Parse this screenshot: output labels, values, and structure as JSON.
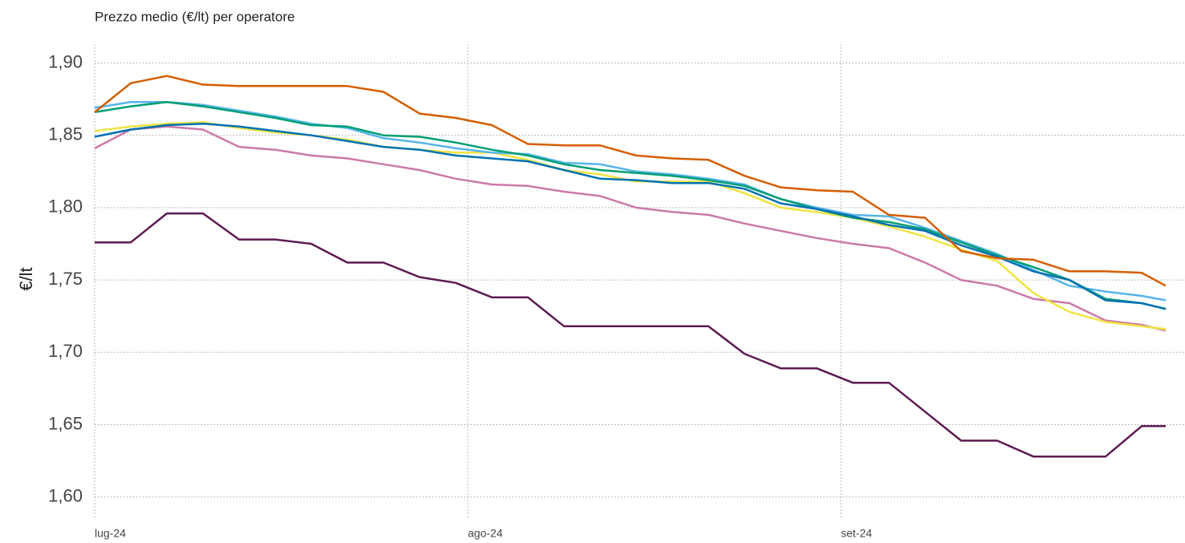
{
  "chart_data": {
    "type": "line",
    "title": "Prezzo medio (€/lt) per operatore",
    "ylabel": "€/lt",
    "x": [
      0,
      3,
      6,
      9,
      12,
      15,
      18,
      21,
      24,
      27,
      30,
      33,
      36,
      39,
      42,
      45,
      48,
      51,
      54,
      57,
      60,
      63,
      66,
      69,
      72,
      75,
      78,
      81,
      84,
      87,
      89
    ],
    "xlim": [
      0,
      90.6
    ],
    "xticks": [
      {
        "value": 0,
        "label": "lug-24"
      },
      {
        "value": 31,
        "label": "ago-24"
      },
      {
        "value": 62,
        "label": "set-24"
      }
    ],
    "ylim": [
      1.586,
      1.913
    ],
    "yticks": [
      {
        "value": 1.6,
        "label": "1,60"
      },
      {
        "value": 1.65,
        "label": "1,65"
      },
      {
        "value": 1.7,
        "label": "1,70"
      },
      {
        "value": 1.75,
        "label": "1,75"
      },
      {
        "value": 1.8,
        "label": "1,80"
      },
      {
        "value": 1.85,
        "label": "1,85"
      },
      {
        "value": 1.9,
        "label": "1,90"
      }
    ],
    "grid": true,
    "series": [
      {
        "color": "#cc79a7",
        "values": [
          1.841,
          1.854,
          1.856,
          1.854,
          1.842,
          1.84,
          1.836,
          1.834,
          1.83,
          1.826,
          1.82,
          1.816,
          1.815,
          1.811,
          1.808,
          1.8,
          1.797,
          1.795,
          1.789,
          1.784,
          1.779,
          1.775,
          1.772,
          1.762,
          1.75,
          1.746,
          1.737,
          1.734,
          1.722,
          1.719,
          1.715
        ]
      },
      {
        "color": "#f0e442",
        "values": [
          1.853,
          1.856,
          1.858,
          1.859,
          1.855,
          1.852,
          1.85,
          1.847,
          1.842,
          1.84,
          1.838,
          1.838,
          1.833,
          1.826,
          1.823,
          1.818,
          1.818,
          1.818,
          1.81,
          1.8,
          1.797,
          1.793,
          1.787,
          1.78,
          1.771,
          1.763,
          1.741,
          1.728,
          1.721,
          1.718,
          1.716
        ]
      },
      {
        "color": "#56b4e9",
        "values": [
          1.869,
          1.873,
          1.873,
          1.871,
          1.867,
          1.863,
          1.858,
          1.855,
          1.848,
          1.845,
          1.841,
          1.838,
          1.837,
          1.831,
          1.83,
          1.825,
          1.823,
          1.82,
          1.816,
          1.806,
          1.8,
          1.795,
          1.794,
          1.786,
          1.777,
          1.768,
          1.757,
          1.746,
          1.742,
          1.739,
          1.736
        ]
      },
      {
        "color": "#009e73",
        "values": [
          1.866,
          1.87,
          1.873,
          1.87,
          1.866,
          1.862,
          1.857,
          1.856,
          1.85,
          1.849,
          1.845,
          1.84,
          1.836,
          1.83,
          1.826,
          1.824,
          1.822,
          1.819,
          1.815,
          1.806,
          1.799,
          1.793,
          1.79,
          1.785,
          1.776,
          1.767,
          1.759,
          1.75,
          1.737,
          1.734,
          1.73
        ]
      },
      {
        "color": "#0072b2",
        "values": [
          1.849,
          1.854,
          1.857,
          1.858,
          1.856,
          1.853,
          1.85,
          1.846,
          1.842,
          1.84,
          1.836,
          1.834,
          1.832,
          1.826,
          1.82,
          1.819,
          1.817,
          1.817,
          1.813,
          1.803,
          1.799,
          1.794,
          1.788,
          1.784,
          1.774,
          1.766,
          1.756,
          1.75,
          1.736,
          1.734,
          1.73
        ]
      },
      {
        "color": "#d55e00",
        "values": [
          1.866,
          1.886,
          1.891,
          1.885,
          1.884,
          1.884,
          1.884,
          1.884,
          1.88,
          1.865,
          1.862,
          1.857,
          1.844,
          1.843,
          1.843,
          1.836,
          1.834,
          1.833,
          1.822,
          1.814,
          1.812,
          1.811,
          1.795,
          1.793,
          1.77,
          1.765,
          1.764,
          1.756,
          1.756,
          1.755,
          1.746
        ]
      },
      {
        "color": "#5e1b51",
        "values": [
          1.776,
          1.776,
          1.796,
          1.796,
          1.778,
          1.778,
          1.775,
          1.762,
          1.762,
          1.752,
          1.748,
          1.738,
          1.738,
          1.718,
          1.718,
          1.718,
          1.718,
          1.718,
          1.699,
          1.689,
          1.689,
          1.679,
          1.679,
          1.659,
          1.639,
          1.639,
          1.628,
          1.628,
          1.628,
          1.649,
          1.649
        ]
      }
    ]
  }
}
